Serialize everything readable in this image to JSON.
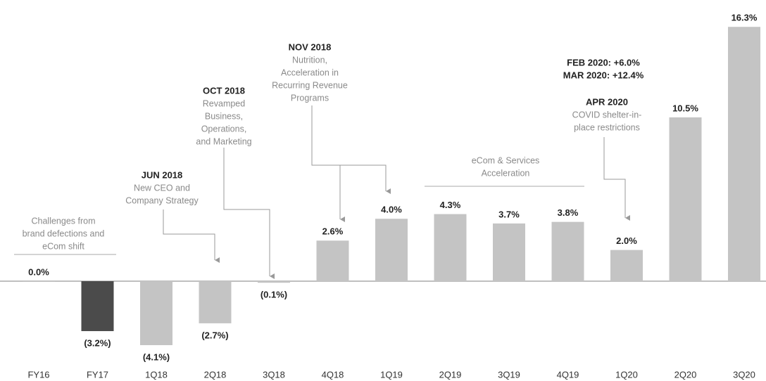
{
  "chart_data": {
    "type": "bar",
    "categories": [
      "FY16",
      "FY17",
      "1Q18",
      "2Q18",
      "3Q18",
      "4Q18",
      "1Q19",
      "2Q19",
      "3Q19",
      "4Q19",
      "1Q20",
      "2Q20",
      "3Q20"
    ],
    "values": [
      0.0,
      -3.2,
      -4.1,
      -2.7,
      -0.1,
      2.6,
      4.0,
      4.3,
      3.7,
      3.8,
      2.0,
      10.5,
      16.3
    ],
    "value_labels": [
      "0.0%",
      "(3.2%)",
      "(4.1%)",
      "(2.7%)",
      "(0.1%)",
      "2.6%",
      "4.0%",
      "4.3%",
      "3.7%",
      "3.8%",
      "2.0%",
      "10.5%",
      "16.3%"
    ],
    "colors": [
      "#c4c4c4",
      "#4b4b4b",
      "#c4c4c4",
      "#c4c4c4",
      "#c4c4c4",
      "#c4c4c4",
      "#c4c4c4",
      "#c4c4c4",
      "#c4c4c4",
      "#c4c4c4",
      "#c4c4c4",
      "#c4c4c4",
      "#c4c4c4"
    ],
    "annotations": [
      {
        "text": [
          "Challenges from",
          "brand defections and",
          "eCom shift"
        ]
      },
      {
        "heading": [
          "JUN 2018"
        ],
        "text": [
          "New CEO and",
          "Company Strategy"
        ]
      },
      {
        "heading": [
          "OCT 2018"
        ],
        "text": [
          "Revamped",
          "Business,",
          "Operations,",
          "and Marketing"
        ]
      },
      {
        "heading": [
          "NOV 2018"
        ],
        "text": [
          "Nutrition,",
          "Acceleration in",
          "Recurring Revenue",
          "Programs"
        ]
      },
      {
        "text": [
          "eCom & Services",
          "Acceleration"
        ]
      },
      {
        "heading": [
          "FEB 2020: +6.0%",
          "MAR 2020: +12.4%"
        ]
      },
      {
        "heading": [
          "APR 2020"
        ],
        "text": [
          "COVID shelter-in-",
          "place restrictions"
        ]
      }
    ]
  }
}
